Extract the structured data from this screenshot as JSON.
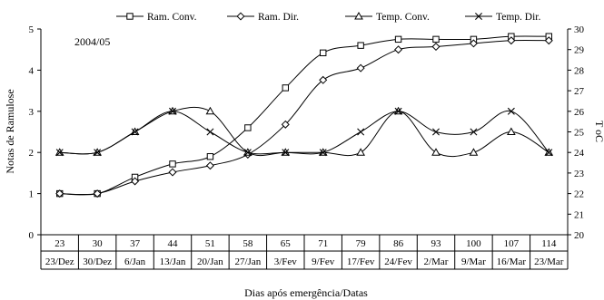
{
  "chart_data": {
    "type": "line",
    "annotation": "2004/05",
    "xlabel": "Dias após emergência/Datas",
    "ylabel_left": "Notas de Ramulose",
    "ylabel_right": "T oC",
    "ylim_left": [
      0,
      5
    ],
    "ylim_right": [
      20,
      30
    ],
    "yticks_left": [
      "0",
      "1",
      "2",
      "3",
      "4",
      "5"
    ],
    "yticks_right": [
      "20",
      "21",
      "22",
      "23",
      "24",
      "25",
      "26",
      "27",
      "28",
      "29",
      "30"
    ],
    "categories": [
      "23",
      "30",
      "37",
      "44",
      "51",
      "58",
      "65",
      "71",
      "79",
      "86",
      "93",
      "100",
      "107",
      "114"
    ],
    "dates": [
      "23/Dez",
      "30/Dez",
      "6/Jan",
      "13/Jan",
      "20/Jan",
      "27/Jan",
      "3/Fev",
      "9/Fev",
      "17/Fev",
      "24/Fev",
      "2/Mar",
      "9/Mar",
      "16/Mar",
      "23/Mar"
    ],
    "grid": false,
    "legend_position": "top",
    "series": [
      {
        "name": "Ram. Conv.",
        "axis": "left",
        "marker": "square",
        "values": [
          1.0,
          1.0,
          1.4,
          1.72,
          1.9,
          2.6,
          3.57,
          4.42,
          4.6,
          4.75,
          4.75,
          4.75,
          4.82,
          4.82
        ]
      },
      {
        "name": "Ram. Dir.",
        "axis": "left",
        "marker": "diamond",
        "values": [
          1.0,
          1.0,
          1.3,
          1.52,
          1.68,
          1.95,
          2.68,
          3.76,
          4.05,
          4.5,
          4.57,
          4.65,
          4.72,
          4.72
        ]
      },
      {
        "name": "Temp. Conv.",
        "axis": "right",
        "marker": "triangle",
        "values": [
          24,
          24,
          25,
          26,
          26,
          24,
          24,
          24,
          24,
          26,
          24,
          24,
          25,
          24
        ]
      },
      {
        "name": "Temp. Dir.",
        "axis": "right",
        "marker": "x",
        "values": [
          24,
          24,
          25,
          26,
          25,
          24,
          24,
          24,
          25,
          26,
          25,
          25,
          26,
          24
        ]
      }
    ]
  }
}
